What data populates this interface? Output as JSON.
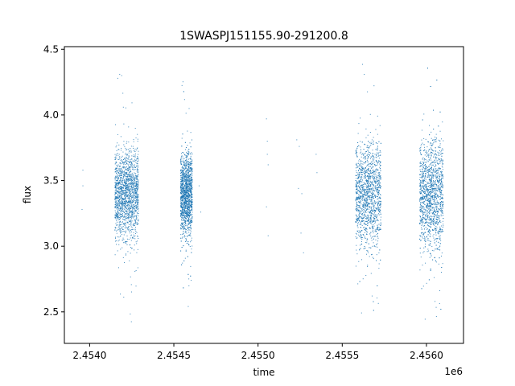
{
  "chart_data": {
    "type": "scatter",
    "title": "1SWASPJ151155.90-291200.8",
    "xlabel": "time",
    "ylabel": "flux",
    "x_offset_label": "1e6",
    "xlim": [
      2453850,
      2456220
    ],
    "ylim": [
      2.26,
      4.52
    ],
    "x_ticks": [
      2454000,
      2454500,
      2455000,
      2455500,
      2456000
    ],
    "x_tick_labels": [
      "2.4540",
      "2.4545",
      "2.4550",
      "2.4555",
      "2.4560"
    ],
    "y_ticks": [
      2.5,
      3.0,
      3.5,
      4.0,
      4.5
    ],
    "y_tick_labels": [
      "2.5",
      "3.0",
      "3.5",
      "4.0",
      "4.5"
    ],
    "grid": false,
    "legend": "none",
    "marker_color": "#1f77b4",
    "series": [
      {
        "clusters": [
          {
            "x_range": [
              2454150,
              2454290
            ],
            "core_y": [
              3.08,
              3.72
            ],
            "outer_y": [
              2.38,
              4.44
            ]
          },
          {
            "x_range": [
              2454540,
              2454610
            ],
            "core_y": [
              3.1,
              3.7
            ],
            "outer_y": [
              2.42,
              4.42
            ]
          },
          {
            "x_range": [
              2455580,
              2455730
            ],
            "core_y": [
              3.02,
              3.78
            ],
            "outer_y": [
              2.39,
              4.44
            ]
          },
          {
            "x_range": [
              2455960,
              2456100
            ],
            "core_y": [
              3.0,
              3.8
            ],
            "outer_y": [
              2.36,
              4.42
            ]
          }
        ],
        "isolated_points": [
          [
            2453960,
            3.58
          ],
          [
            2453960,
            3.46
          ],
          [
            2453955,
            3.28
          ],
          [
            2454650,
            3.46
          ],
          [
            2454660,
            3.26
          ],
          [
            2455050,
            3.97
          ],
          [
            2455055,
            3.8
          ],
          [
            2455055,
            3.7
          ],
          [
            2455060,
            3.62
          ],
          [
            2455050,
            3.3
          ],
          [
            2455060,
            3.08
          ],
          [
            2455230,
            3.81
          ],
          [
            2455245,
            3.76
          ],
          [
            2455240,
            3.44
          ],
          [
            2455260,
            3.4
          ],
          [
            2455255,
            3.1
          ],
          [
            2455270,
            2.95
          ],
          [
            2455345,
            3.7
          ],
          [
            2455350,
            3.56
          ]
        ]
      }
    ]
  }
}
